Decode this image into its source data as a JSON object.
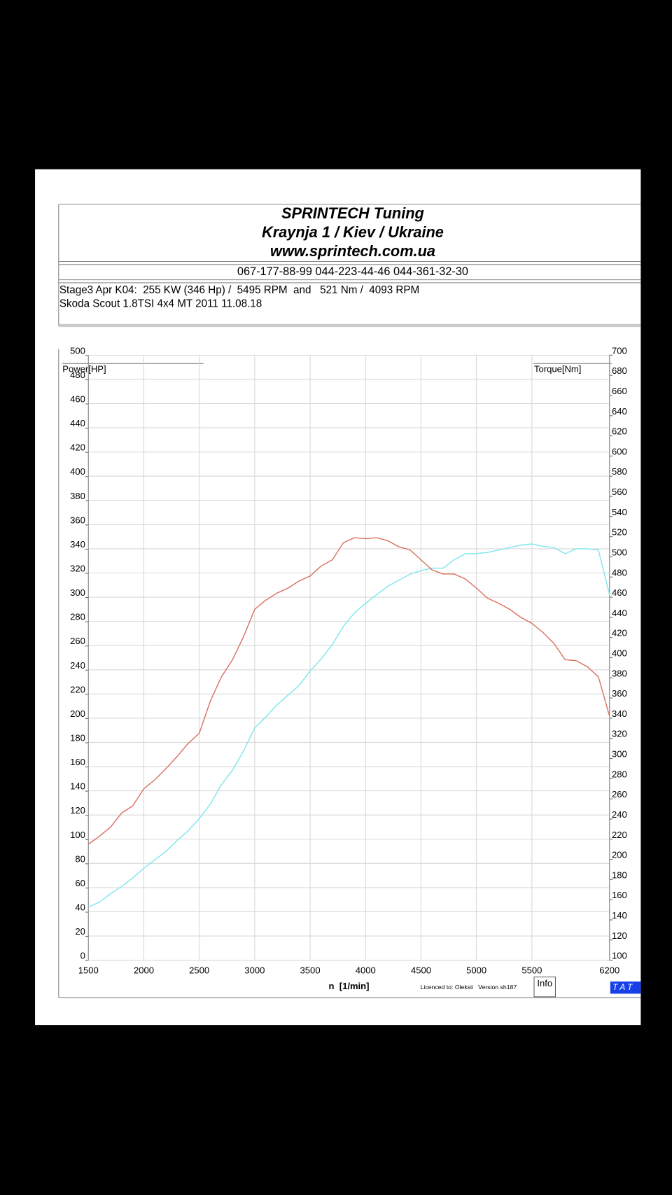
{
  "chart_data": {
    "type": "line",
    "header_lines": [
      "SPRINTECH Tuning",
      "Kraynja 1 / Kiev / Ukraine",
      "www.sprintech.com.ua"
    ],
    "phones": "067-177-88-99 044-223-44-46 044-361-32-30",
    "info_lines": [
      "Stage3 Apr K04:  255 KW (346 Hp) /  5495 RPM  and   521 Nm /  4093 RPM",
      "Skoda Scout 1.8TSI 4x4 MT 2011 11.08.18"
    ],
    "y_label": "Power[HP]",
    "y2_label": "Torque[Nm]",
    "x_label": "n  [1/min]",
    "licence": "Licenced to: Oleksii   Version sh187",
    "button": "Info",
    "badge": "T A T",
    "grid": true,
    "xlim": [
      1500,
      6200
    ],
    "xticks": [
      1500,
      2000,
      2500,
      3000,
      3500,
      4000,
      4500,
      5000,
      5500,
      6200
    ],
    "ylim": [
      0,
      500
    ],
    "yticks": [
      0,
      20,
      40,
      60,
      80,
      100,
      120,
      140,
      160,
      180,
      200,
      220,
      240,
      260,
      280,
      300,
      320,
      340,
      360,
      380,
      400,
      420,
      440,
      460,
      480,
      500
    ],
    "y2lim": [
      100,
      700
    ],
    "y2ticks": [
      100,
      120,
      140,
      160,
      180,
      200,
      220,
      240,
      260,
      280,
      300,
      320,
      340,
      360,
      380,
      400,
      420,
      440,
      460,
      480,
      500,
      520,
      540,
      560,
      580,
      600,
      620,
      640,
      660,
      680,
      700
    ],
    "x": [
      1500,
      1600,
      1700,
      1800,
      1900,
      2000,
      2100,
      2200,
      2300,
      2400,
      2500,
      2600,
      2700,
      2800,
      2900,
      3000,
      3100,
      3200,
      3300,
      3400,
      3500,
      3600,
      3700,
      3800,
      3900,
      4000,
      4100,
      4200,
      4300,
      4400,
      4500,
      4600,
      4700,
      4800,
      4900,
      5000,
      5100,
      5200,
      5300,
      5400,
      5500,
      5600,
      5700,
      5800,
      5900,
      6000,
      6100,
      6200
    ],
    "series": [
      {
        "name": "Power",
        "color": "#7fe6ee",
        "axis": "y",
        "values": [
          44,
          48,
          55,
          61,
          68,
          76,
          83,
          90,
          99,
          107,
          117,
          129,
          145,
          157,
          173,
          192,
          201,
          211,
          219,
          227,
          239,
          249,
          261,
          276,
          287,
          295,
          302,
          309,
          314,
          319,
          322,
          324,
          324,
          331,
          336,
          336,
          337,
          339,
          341,
          343,
          344,
          342,
          341,
          336,
          340,
          340,
          339,
          302
        ]
      },
      {
        "name": "Torque",
        "color": "#d9705f",
        "axis": "y2",
        "values": [
          215,
          223,
          232,
          246,
          253,
          270,
          279,
          290,
          302,
          315,
          325,
          357,
          381,
          398,
          421,
          448,
          457,
          464,
          469,
          476,
          481,
          491,
          497,
          514,
          519,
          518,
          519,
          516,
          510,
          507,
          497,
          487,
          483,
          483,
          478,
          469,
          459,
          454,
          448,
          440,
          434,
          425,
          414,
          398,
          397,
          391,
          381,
          342
        ]
      }
    ]
  }
}
